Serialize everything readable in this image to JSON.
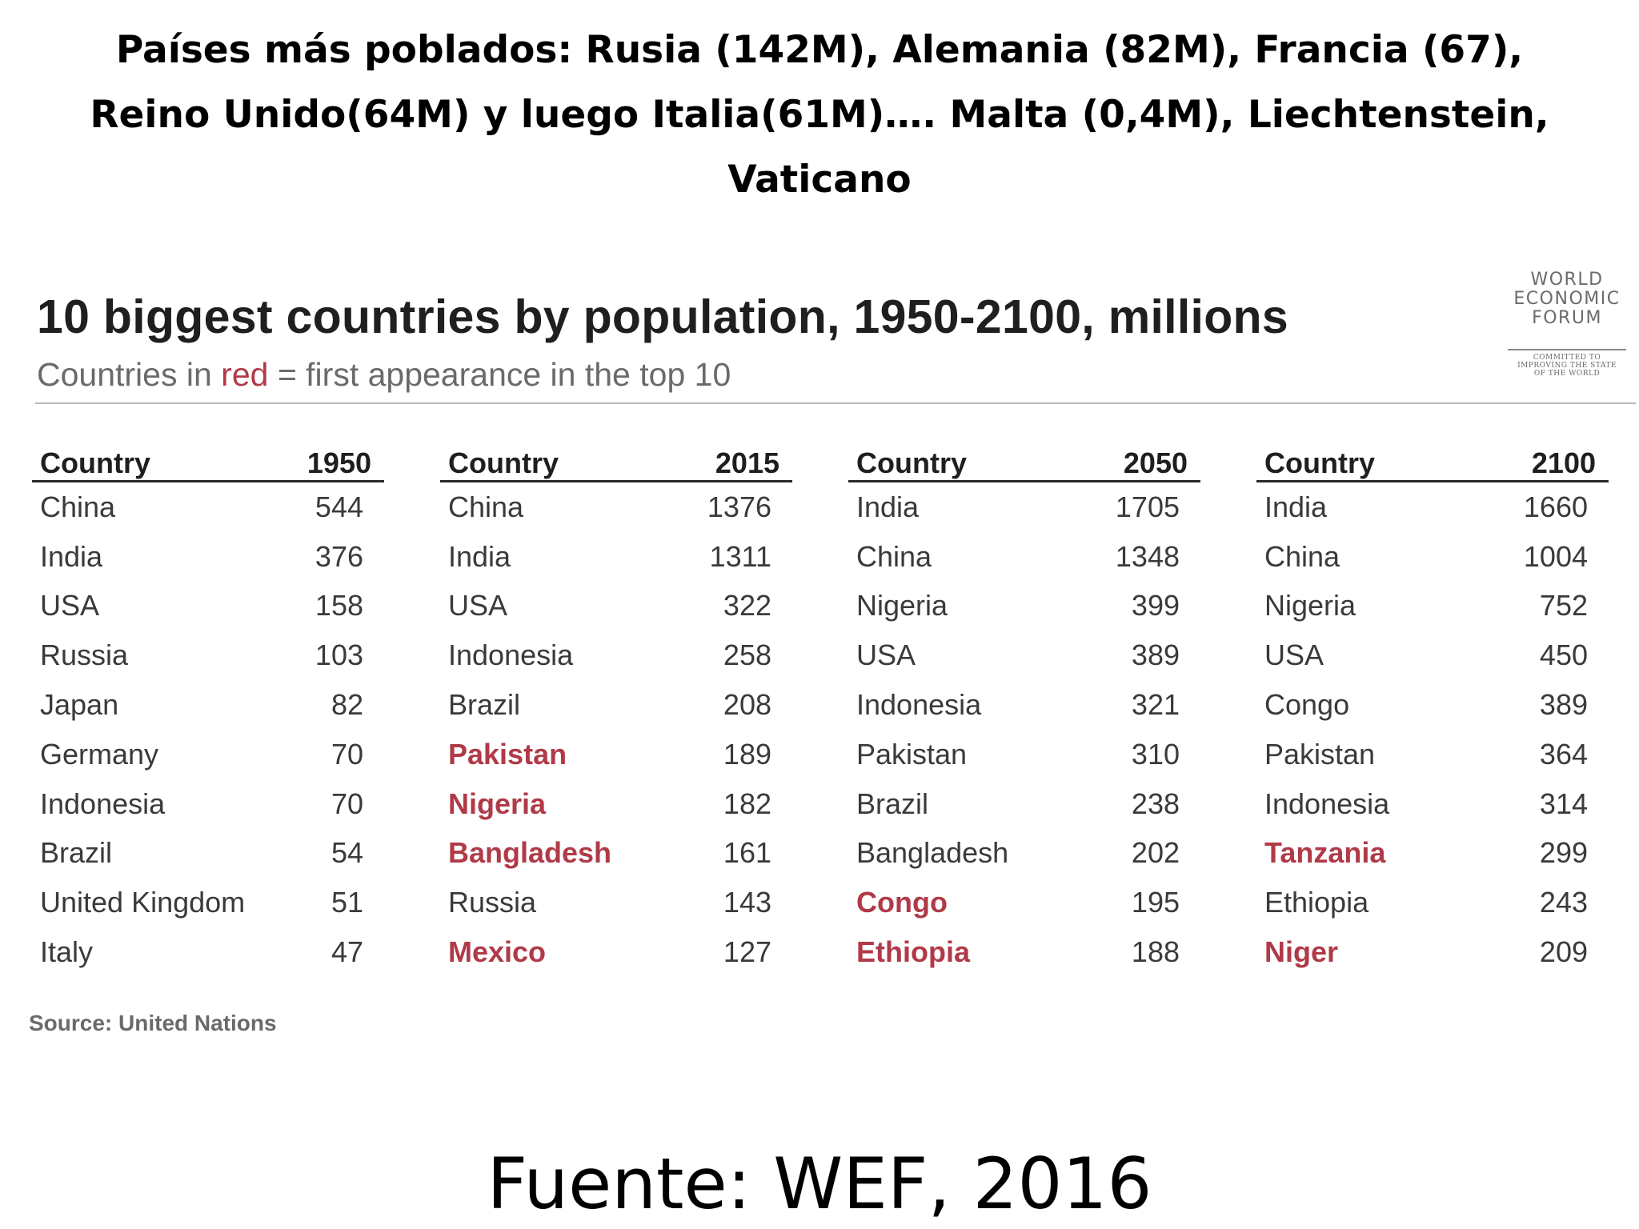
{
  "slide": {
    "title_lines": [
      "Países más poblados: Rusia (142M), Alemania (82M), Francia (67),",
      "Reino Unido(64M) y luego Italia(61M)…. Malta (0,4M), Liechtenstein,",
      "Vaticano"
    ],
    "footer": "Fuente: WEF, 2016"
  },
  "logo": {
    "line1": "WORLD",
    "line2": "ECONOMIC",
    "line3": "FORUM",
    "tagline": [
      "COMMITTED TO",
      "IMPROVING THE STATE",
      "OF THE WORLD"
    ]
  },
  "colors": {
    "highlight_red": "#b03a48",
    "text_dark": "#1f1f1f",
    "text_body": "#3a3a3a",
    "text_muted": "#6a6a6a"
  },
  "chart_data": {
    "type": "table",
    "title": "10 biggest countries by population, 1950-2100, millions",
    "subtitle_prefix": "Countries in ",
    "subtitle_red": "red",
    "subtitle_suffix": " = first appearance in the top 10",
    "source": "Source: United Nations",
    "tables": [
      {
        "col_header": "Country",
        "year": "1950",
        "rows": [
          {
            "country": "China",
            "value": 544,
            "new": false
          },
          {
            "country": "India",
            "value": 376,
            "new": false
          },
          {
            "country": "USA",
            "value": 158,
            "new": false
          },
          {
            "country": "Russia",
            "value": 103,
            "new": false
          },
          {
            "country": "Japan",
            "value": 82,
            "new": false
          },
          {
            "country": "Germany",
            "value": 70,
            "new": false
          },
          {
            "country": "Indonesia",
            "value": 70,
            "new": false
          },
          {
            "country": "Brazil",
            "value": 54,
            "new": false
          },
          {
            "country": "United Kingdom",
            "value": 51,
            "new": false
          },
          {
            "country": "Italy",
            "value": 47,
            "new": false
          }
        ]
      },
      {
        "col_header": "Country",
        "year": "2015",
        "rows": [
          {
            "country": "China",
            "value": 1376,
            "new": false
          },
          {
            "country": "India",
            "value": 1311,
            "new": false
          },
          {
            "country": "USA",
            "value": 322,
            "new": false
          },
          {
            "country": "Indonesia",
            "value": 258,
            "new": false
          },
          {
            "country": "Brazil",
            "value": 208,
            "new": false
          },
          {
            "country": "Pakistan",
            "value": 189,
            "new": true
          },
          {
            "country": "Nigeria",
            "value": 182,
            "new": true
          },
          {
            "country": "Bangladesh",
            "value": 161,
            "new": true
          },
          {
            "country": "Russia",
            "value": 143,
            "new": false
          },
          {
            "country": "Mexico",
            "value": 127,
            "new": true
          }
        ]
      },
      {
        "col_header": "Country",
        "year": "2050",
        "rows": [
          {
            "country": "India",
            "value": 1705,
            "new": false
          },
          {
            "country": "China",
            "value": 1348,
            "new": false
          },
          {
            "country": "Nigeria",
            "value": 399,
            "new": false
          },
          {
            "country": "USA",
            "value": 389,
            "new": false
          },
          {
            "country": "Indonesia",
            "value": 321,
            "new": false
          },
          {
            "country": "Pakistan",
            "value": 310,
            "new": false
          },
          {
            "country": "Brazil",
            "value": 238,
            "new": false
          },
          {
            "country": "Bangladesh",
            "value": 202,
            "new": false
          },
          {
            "country": "Congo",
            "value": 195,
            "new": true
          },
          {
            "country": "Ethiopia",
            "value": 188,
            "new": true
          }
        ]
      },
      {
        "col_header": "Country",
        "year": "2100",
        "rows": [
          {
            "country": "India",
            "value": 1660,
            "new": false
          },
          {
            "country": "China",
            "value": 1004,
            "new": false
          },
          {
            "country": "Nigeria",
            "value": 752,
            "new": false
          },
          {
            "country": "USA",
            "value": 450,
            "new": false
          },
          {
            "country": "Congo",
            "value": 389,
            "new": false
          },
          {
            "country": "Pakistan",
            "value": 364,
            "new": false
          },
          {
            "country": "Indonesia",
            "value": 314,
            "new": false
          },
          {
            "country": "Tanzania",
            "value": 299,
            "new": true
          },
          {
            "country": "Ethiopia",
            "value": 243,
            "new": false
          },
          {
            "country": "Niger",
            "value": 209,
            "new": true
          }
        ]
      }
    ]
  }
}
